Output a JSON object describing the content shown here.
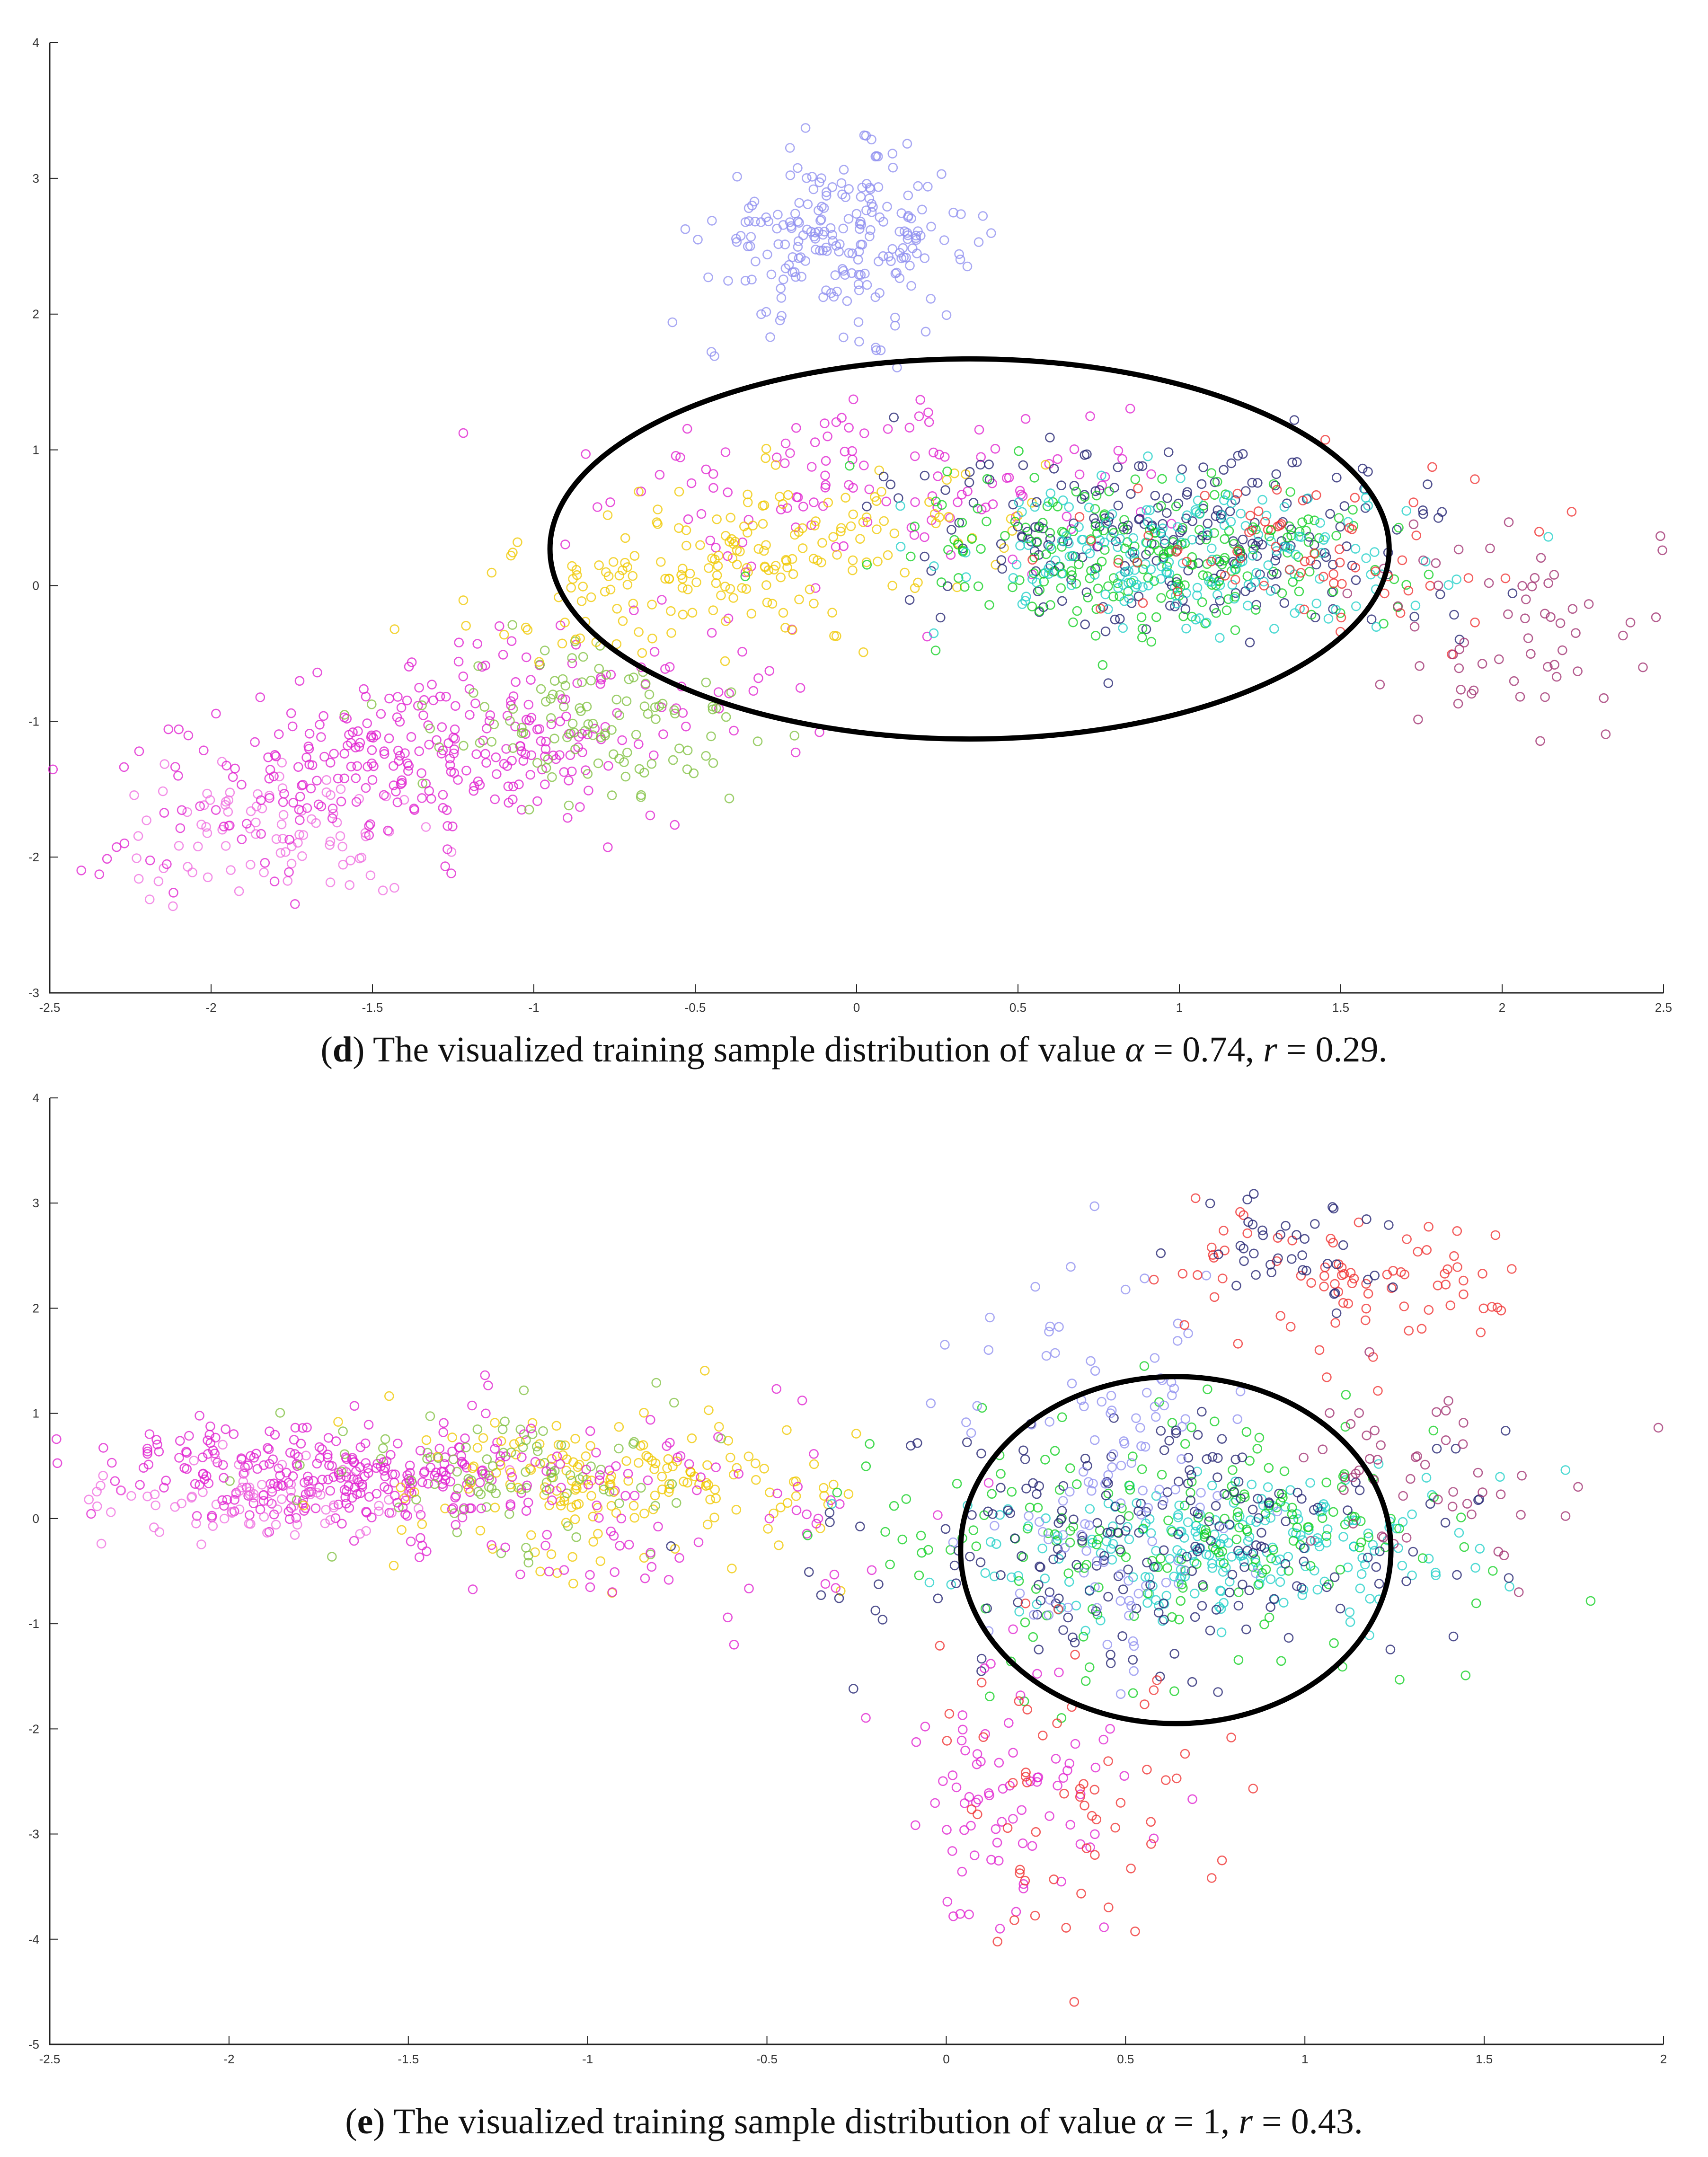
{
  "chart_data": [
    {
      "type": "scatter",
      "panel": "d",
      "caption": {
        "prefix": "(",
        "letter": "d",
        "text": ") The visualized training sample distribution of value ",
        "alpha_symbol": "α",
        "alpha_text": " = 0.74, ",
        "r_symbol": "r",
        "r_text": " = 0.29."
      },
      "xlim": [
        -2.5,
        2.5
      ],
      "ylim": [
        -3,
        4
      ],
      "xticks": [
        -2.5,
        -2,
        -1.5,
        -1,
        -0.5,
        0,
        0.5,
        1,
        1.5,
        2,
        2.5
      ],
      "xtick_labels": [
        "-2.5",
        "-2",
        "-1.5",
        "-1",
        "-0.5",
        "0",
        "0.5",
        "1",
        "1.5",
        "2",
        "2.5"
      ],
      "yticks": [
        -3,
        -2,
        -1,
        0,
        1,
        2,
        3,
        4
      ],
      "ytick_labels": [
        "-3",
        "-2",
        "-1",
        "0",
        "1",
        "2",
        "3",
        "4"
      ],
      "ellipse": {
        "cx": 0.35,
        "cy": 0.27,
        "rx": 1.3,
        "ry": 1.4
      },
      "clusters": [
        {
          "name": "periwinkle",
          "color": "#9090f0",
          "center": [
            -0.05,
            2.55
          ],
          "spread": [
            0.2,
            0.3
          ],
          "angle": 0,
          "count": 220
        },
        {
          "name": "magenta-light",
          "color": "#f070e0",
          "center": [
            -1.8,
            -1.85
          ],
          "spread": [
            0.25,
            0.25
          ],
          "angle": 0,
          "count": 90
        },
        {
          "name": "magenta",
          "color": "#e020d0",
          "center": [
            -1.3,
            -1.2
          ],
          "spread": [
            0.55,
            0.3
          ],
          "angle": 35,
          "count": 320
        },
        {
          "name": "magenta-upper",
          "color": "#e020d0",
          "center": [
            0.1,
            0.8
          ],
          "spread": [
            0.45,
            0.35
          ],
          "angle": 0,
          "count": 120
        },
        {
          "name": "yellow-green",
          "color": "#80c040",
          "center": [
            -0.8,
            -1.0
          ],
          "spread": [
            0.22,
            0.28
          ],
          "angle": 30,
          "count": 110
        },
        {
          "name": "yellow",
          "color": "#f0c800",
          "center": [
            -0.3,
            0.2
          ],
          "spread": [
            0.45,
            0.25
          ],
          "angle": 35,
          "count": 200
        },
        {
          "name": "navy",
          "color": "#202070",
          "center": [
            0.95,
            0.4
          ],
          "spread": [
            0.45,
            0.35
          ],
          "angle": -15,
          "count": 230
        },
        {
          "name": "green",
          "color": "#10d020",
          "center": [
            0.95,
            0.2
          ],
          "spread": [
            0.4,
            0.3
          ],
          "angle": -10,
          "count": 220
        },
        {
          "name": "cyan",
          "color": "#20d0c8",
          "center": [
            1.0,
            0.2
          ],
          "spread": [
            0.35,
            0.25
          ],
          "angle": -10,
          "count": 180
        },
        {
          "name": "red",
          "color": "#f03030",
          "center": [
            1.35,
            0.3
          ],
          "spread": [
            0.35,
            0.3
          ],
          "angle": 0,
          "count": 70
        },
        {
          "name": "plum",
          "color": "#a03070",
          "center": [
            2.0,
            -0.35
          ],
          "spread": [
            0.25,
            0.4
          ],
          "angle": 0,
          "count": 60
        }
      ]
    },
    {
      "type": "scatter",
      "panel": "e",
      "caption": {
        "prefix": "(",
        "letter": "e",
        "text": ") The visualized training sample distribution of value ",
        "alpha_symbol": "α",
        "alpha_text": " = 1, ",
        "r_symbol": "r",
        "r_text": " = 0.43."
      },
      "xlim": [
        -2.5,
        2
      ],
      "ylim": [
        -5,
        4
      ],
      "xticks": [
        -2.5,
        -2,
        -1.5,
        -1,
        -0.5,
        0,
        0.5,
        1,
        1.5,
        2
      ],
      "xtick_labels": [
        "-2.5",
        "-2",
        "-1.5",
        "-1",
        "-0.5",
        "0",
        "0.5",
        "1",
        "1.5",
        "2"
      ],
      "yticks": [
        -5,
        -4,
        -3,
        -2,
        -1,
        0,
        1,
        2,
        3,
        4
      ],
      "ytick_labels": [
        "-5",
        "-4",
        "-3",
        "-2",
        "-1",
        "0",
        "1",
        "2",
        "3",
        "4"
      ],
      "ellipse": {
        "cx": 0.64,
        "cy": -0.3,
        "rx": 0.6,
        "ry": 1.65
      },
      "clusters": [
        {
          "name": "magenta",
          "color": "#e020d0",
          "center": [
            -1.75,
            0.45
          ],
          "spread": [
            0.3,
            0.25
          ],
          "angle": 0,
          "count": 260
        },
        {
          "name": "magenta-light",
          "color": "#f070e0",
          "center": [
            -1.9,
            0.15
          ],
          "spread": [
            0.25,
            0.2
          ],
          "angle": 0,
          "count": 80
        },
        {
          "name": "yellow",
          "color": "#f0c800",
          "center": [
            -0.95,
            0.3
          ],
          "spread": [
            0.3,
            0.35
          ],
          "angle": 0,
          "count": 170
        },
        {
          "name": "yellow-green",
          "color": "#80c040",
          "center": [
            -1.15,
            0.4
          ],
          "spread": [
            0.25,
            0.35
          ],
          "angle": 0,
          "count": 90
        },
        {
          "name": "magenta-mid",
          "color": "#e020d0",
          "center": [
            -1.0,
            0.2
          ],
          "spread": [
            0.4,
            0.5
          ],
          "angle": 0,
          "count": 110
        },
        {
          "name": "cyan",
          "color": "#20d0c8",
          "center": [
            0.75,
            -0.3
          ],
          "spread": [
            0.35,
            0.35
          ],
          "angle": 0,
          "count": 220
        },
        {
          "name": "green",
          "color": "#10d020",
          "center": [
            0.65,
            -0.2
          ],
          "spread": [
            0.4,
            0.55
          ],
          "angle": 0,
          "count": 200
        },
        {
          "name": "navy",
          "color": "#202070",
          "center": [
            0.6,
            -0.3
          ],
          "spread": [
            0.4,
            0.6
          ],
          "angle": 0,
          "count": 210
        },
        {
          "name": "periwinkle",
          "color": "#9090f0",
          "center": [
            0.45,
            0.4
          ],
          "spread": [
            0.2,
            1.0
          ],
          "angle": 0,
          "count": 120
        },
        {
          "name": "red",
          "color": "#f03030",
          "center": [
            1.1,
            2.3
          ],
          "spread": [
            0.25,
            0.35
          ],
          "angle": 0,
          "count": 80
        },
        {
          "name": "navy-upper",
          "color": "#202070",
          "center": [
            0.95,
            2.5
          ],
          "spread": [
            0.15,
            0.3
          ],
          "angle": 0,
          "count": 40
        },
        {
          "name": "magenta-lower",
          "color": "#e020d0",
          "center": [
            0.2,
            -2.6
          ],
          "spread": [
            0.15,
            0.6
          ],
          "angle": 0,
          "count": 80
        },
        {
          "name": "red-lower",
          "color": "#f03030",
          "center": [
            0.35,
            -2.5
          ],
          "spread": [
            0.25,
            0.8
          ],
          "angle": 0,
          "count": 60
        },
        {
          "name": "plum",
          "color": "#a03070",
          "center": [
            1.3,
            0.3
          ],
          "spread": [
            0.2,
            0.5
          ],
          "angle": 0,
          "count": 50
        }
      ]
    }
  ]
}
